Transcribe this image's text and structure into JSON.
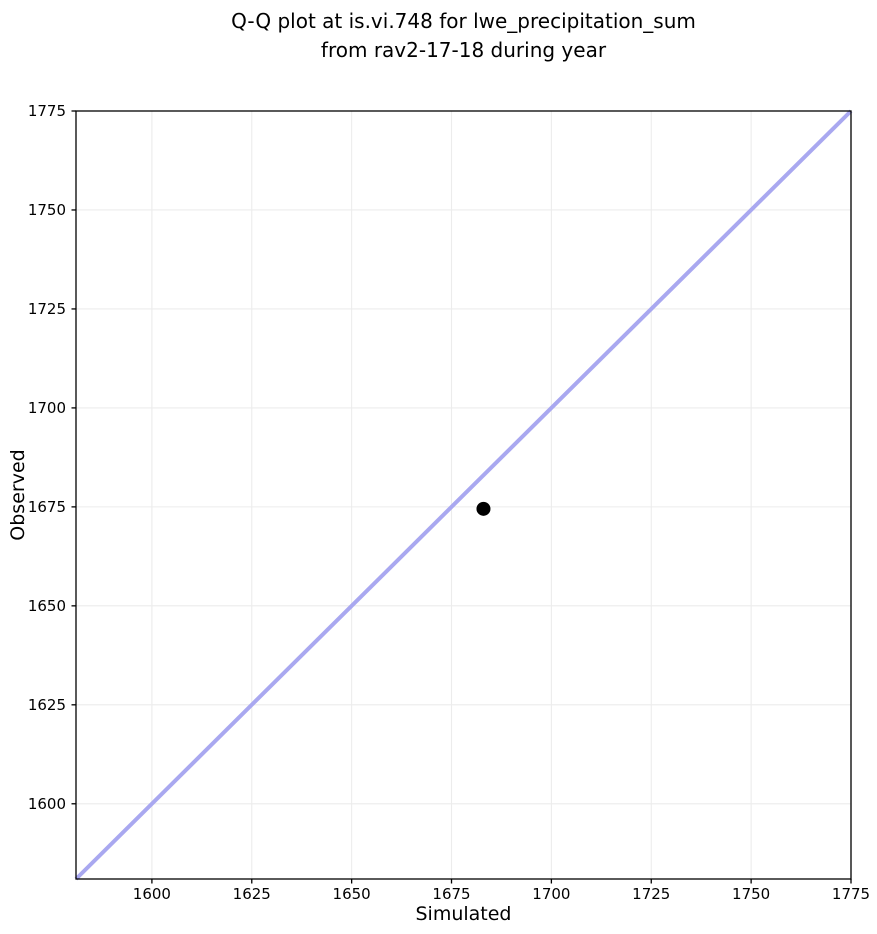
{
  "figure": {
    "title_line1": "Q-Q plot at is.vi.748 for lwe_precipitation_sum",
    "title_line2": "from rav2-17-18 during year"
  },
  "colors": {
    "background": "#ffffff",
    "grid": "#ececec",
    "spine": "#000000",
    "tick": "#000000",
    "identity_line": "#a9a8f0",
    "marker": "#000000"
  },
  "chart_data": {
    "type": "scatter",
    "title": "Q-Q plot at is.vi.748 for lwe_precipitation_sum from rav2-17-18 during year",
    "xlabel": "Simulated",
    "ylabel": "Observed",
    "xlim": [
      1581,
      1775
    ],
    "ylim": [
      1581,
      1775
    ],
    "xticks": [
      1600,
      1625,
      1650,
      1675,
      1700,
      1725,
      1750,
      1775
    ],
    "yticks": [
      1600,
      1625,
      1650,
      1675,
      1700,
      1725,
      1750,
      1775
    ],
    "grid": true,
    "legend": "none",
    "series": [
      {
        "name": "identity-line",
        "type": "line",
        "color": "#a9a8f0",
        "points": [
          [
            1581,
            1581
          ],
          [
            1775,
            1775
          ]
        ]
      },
      {
        "name": "observed-vs-simulated-quantiles",
        "type": "scatter",
        "color": "#000000",
        "points": [
          [
            1683,
            1674.5
          ]
        ]
      }
    ]
  }
}
